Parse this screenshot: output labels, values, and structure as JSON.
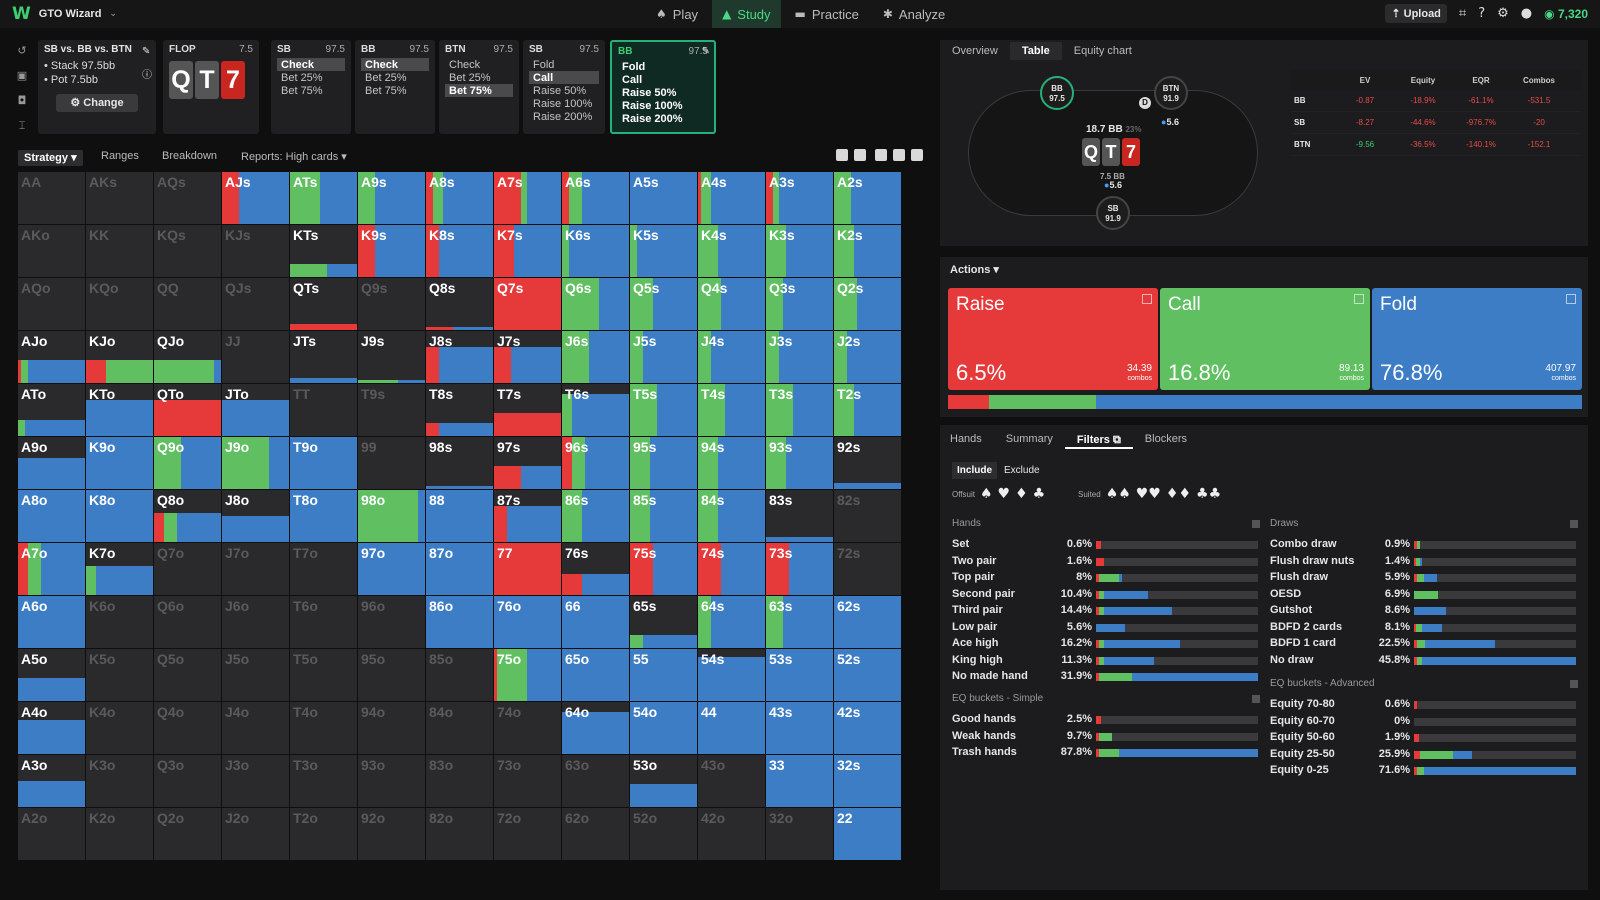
{
  "app": {
    "title": "GTO Wizard",
    "coins": "7,320",
    "upload": "Upload"
  },
  "nav": [
    {
      "label": "Play",
      "icon": "🃏"
    },
    {
      "label": "Study",
      "icon": "🎓"
    },
    {
      "label": "Practice",
      "icon": "🎮"
    },
    {
      "label": "Analyze",
      "icon": "💡"
    }
  ],
  "scenario": {
    "title": "SB vs. BB vs. BTN",
    "stack": "Stack 97.5bb",
    "pot": "Pot 7.5bb",
    "change": "Change"
  },
  "flop": {
    "label": "FLOP",
    "stack": "7.5",
    "cards": [
      {
        "rank": "Q",
        "suit": "grey"
      },
      {
        "rank": "T",
        "suit": "grey"
      },
      {
        "rank": "7",
        "suit": "red"
      }
    ]
  },
  "spots": [
    {
      "pos": "SB",
      "stack": "97.5",
      "options": [
        "Check",
        "Bet 25%",
        "Bet 75%"
      ],
      "selected": 0
    },
    {
      "pos": "BB",
      "stack": "97.5",
      "options": [
        "Check",
        "Bet 25%",
        "Bet 75%"
      ],
      "selected": 0
    },
    {
      "pos": "BTN",
      "stack": "97.5",
      "options": [
        "Check",
        "Bet 25%",
        "Bet 75%"
      ],
      "selected": 2
    },
    {
      "pos": "SB",
      "stack": "97.5",
      "options": [
        "Fold",
        "Call",
        "Raise 50%",
        "Raise 100%",
        "Raise 200%"
      ],
      "selected": 1
    },
    {
      "pos": "BB",
      "stack": "97.5",
      "options": [
        "Fold",
        "Call",
        "Raise 50%",
        "Raise 100%",
        "Raise 200%"
      ],
      "selected": -1,
      "active": true
    }
  ],
  "subtabs": {
    "strategy": "Strategy",
    "ranges": "Ranges",
    "breakdown": "Breakdown",
    "reports": "Reports: High cards"
  },
  "grid": [
    [
      [
        "AA",
        0,
        0,
        0
      ],
      [
        "AKs",
        0,
        0,
        0
      ],
      [
        "AQs",
        0,
        0,
        0
      ],
      [
        "AJs",
        25,
        0,
        75
      ],
      [
        "ATs",
        0,
        45,
        55
      ],
      [
        "A9s",
        0,
        25,
        75
      ],
      [
        "A8s",
        10,
        15,
        75
      ],
      [
        "A7s",
        40,
        10,
        50
      ],
      [
        "A6s",
        10,
        20,
        70
      ],
      [
        "A5s",
        0,
        0,
        100
      ],
      [
        "A4s",
        5,
        15,
        80
      ],
      [
        "A3s",
        10,
        10,
        80
      ],
      [
        "A2s",
        0,
        25,
        75
      ]
    ],
    [
      [
        "AKo",
        0,
        0,
        0
      ],
      [
        "KK",
        0,
        0,
        0
      ],
      [
        "KQs",
        0,
        0,
        0
      ],
      [
        "KJs",
        0,
        0,
        0
      ],
      [
        "KTs",
        0,
        55,
        45,
        0.25
      ],
      [
        "K9s",
        25,
        0,
        75
      ],
      [
        "K8s",
        20,
        0,
        80
      ],
      [
        "K7s",
        30,
        0,
        70
      ],
      [
        "K6s",
        0,
        10,
        90
      ],
      [
        "K5s",
        0,
        10,
        90
      ],
      [
        "K4s",
        0,
        30,
        70
      ],
      [
        "K3s",
        0,
        30,
        70
      ],
      [
        "K2s",
        0,
        30,
        70
      ]
    ],
    [
      [
        "AQo",
        0,
        0,
        0
      ],
      [
        "KQo",
        0,
        0,
        0
      ],
      [
        "QQ",
        0,
        0,
        0
      ],
      [
        "QJs",
        0,
        0,
        0
      ],
      [
        "QTs",
        100,
        0,
        0,
        0.12
      ],
      [
        "Q9s",
        0,
        0,
        0
      ],
      [
        "Q8s",
        40,
        0,
        60,
        0.06
      ],
      [
        "Q7s",
        100,
        0,
        0
      ],
      [
        "Q6s",
        0,
        55,
        45
      ],
      [
        "Q5s",
        0,
        35,
        65
      ],
      [
        "Q4s",
        0,
        35,
        65
      ],
      [
        "Q3s",
        0,
        25,
        75
      ],
      [
        "Q2s",
        0,
        35,
        65
      ]
    ],
    [
      [
        "AJo",
        5,
        10,
        85,
        0.45
      ],
      [
        "KJo",
        30,
        70,
        0,
        0.45
      ],
      [
        "QJo",
        0,
        90,
        10,
        0.45
      ],
      [
        "JJ",
        0,
        0,
        0
      ],
      [
        "JTs",
        0,
        0,
        100,
        0.1
      ],
      [
        "J9s",
        0,
        60,
        40,
        0.06
      ],
      [
        "J8s",
        20,
        0,
        80,
        0.7
      ],
      [
        "J7s",
        25,
        0,
        75,
        0.7
      ],
      [
        "J6s",
        0,
        40,
        60
      ],
      [
        "J5s",
        0,
        20,
        80
      ],
      [
        "J4s",
        0,
        20,
        80
      ],
      [
        "J3s",
        0,
        20,
        80
      ],
      [
        "J2s",
        0,
        20,
        80
      ]
    ],
    [
      [
        "ATo",
        0,
        10,
        90,
        0.3
      ],
      [
        "KTo",
        0,
        0,
        100,
        0.7
      ],
      [
        "QTo",
        100,
        0,
        0,
        0.7
      ],
      [
        "JTo",
        0,
        0,
        100,
        0.7
      ],
      [
        "TT",
        0,
        0,
        0
      ],
      [
        "T9s",
        0,
        0,
        0
      ],
      [
        "T8s",
        20,
        0,
        80,
        0.25
      ],
      [
        "T7s",
        100,
        0,
        0,
        0.45
      ],
      [
        "T6s",
        0,
        15,
        85,
        0.8
      ],
      [
        "T5s",
        0,
        40,
        60
      ],
      [
        "T4s",
        0,
        40,
        60
      ],
      [
        "T3s",
        0,
        40,
        60
      ],
      [
        "T2s",
        0,
        30,
        70
      ]
    ],
    [
      [
        "A9o",
        0,
        0,
        100,
        0.6
      ],
      [
        "K9o",
        0,
        0,
        100
      ],
      [
        "Q9o",
        0,
        40,
        60
      ],
      [
        "J9o",
        0,
        70,
        30
      ],
      [
        "T9o",
        0,
        0,
        100
      ],
      [
        "99",
        0,
        0,
        0
      ],
      [
        "98s",
        0,
        0,
        100,
        0.06
      ],
      [
        "97s",
        40,
        0,
        60,
        0.45
      ],
      [
        "96s",
        15,
        20,
        65
      ],
      [
        "95s",
        0,
        30,
        70
      ],
      [
        "94s",
        0,
        30,
        70
      ],
      [
        "93s",
        0,
        30,
        70
      ],
      [
        "92s",
        0,
        0,
        100,
        0.12
      ]
    ],
    [
      [
        "A8o",
        0,
        0,
        100
      ],
      [
        "K8o",
        0,
        0,
        100
      ],
      [
        "Q8o",
        15,
        20,
        65,
        0.55
      ],
      [
        "J8o",
        0,
        0,
        100,
        0.5
      ],
      [
        "T8o",
        0,
        0,
        100
      ],
      [
        "98o",
        0,
        90,
        10
      ],
      [
        "88",
        0,
        0,
        100
      ],
      [
        "87s",
        20,
        0,
        80,
        0.7
      ],
      [
        "86s",
        0,
        30,
        70
      ],
      [
        "85s",
        0,
        30,
        70
      ],
      [
        "84s",
        0,
        30,
        70
      ],
      [
        "83s",
        0,
        0,
        100,
        0.1
      ],
      [
        "82s",
        0,
        0,
        0
      ]
    ],
    [
      [
        "A7o",
        15,
        20,
        65
      ],
      [
        "K7o",
        0,
        15,
        85,
        0.55
      ],
      [
        "Q7o",
        0,
        0,
        0
      ],
      [
        "J7o",
        0,
        0,
        0
      ],
      [
        "T7o",
        0,
        0,
        0
      ],
      [
        "97o",
        0,
        0,
        100
      ],
      [
        "87o",
        0,
        0,
        100
      ],
      [
        "77",
        100,
        0,
        0
      ],
      [
        "76s",
        30,
        0,
        70,
        0.4
      ],
      [
        "75s",
        35,
        0,
        65
      ],
      [
        "74s",
        35,
        0,
        65
      ],
      [
        "73s",
        35,
        0,
        65
      ],
      [
        "72s",
        0,
        0,
        0
      ]
    ],
    [
      [
        "A6o",
        0,
        0,
        100
      ],
      [
        "K6o",
        0,
        0,
        0
      ],
      [
        "Q6o",
        0,
        0,
        0
      ],
      [
        "J6o",
        0,
        0,
        0
      ],
      [
        "T6o",
        0,
        0,
        0
      ],
      [
        "96o",
        0,
        0,
        0
      ],
      [
        "86o",
        0,
        0,
        100
      ],
      [
        "76o",
        0,
        0,
        100
      ],
      [
        "66",
        0,
        0,
        100
      ],
      [
        "65s",
        0,
        20,
        80,
        0.25
      ],
      [
        "64s",
        0,
        20,
        80
      ],
      [
        "63s",
        0,
        25,
        75
      ],
      [
        "62s",
        0,
        0,
        100
      ]
    ],
    [
      [
        "A5o",
        0,
        0,
        100,
        0.45
      ],
      [
        "K5o",
        0,
        0,
        0
      ],
      [
        "Q5o",
        0,
        0,
        0
      ],
      [
        "J5o",
        0,
        0,
        0
      ],
      [
        "T5o",
        0,
        0,
        0
      ],
      [
        "95o",
        0,
        0,
        0
      ],
      [
        "85o",
        0,
        0,
        0
      ],
      [
        "75o",
        5,
        45,
        50
      ],
      [
        "65o",
        0,
        0,
        100
      ],
      [
        "55",
        0,
        0,
        100
      ],
      [
        "54s",
        0,
        0,
        100,
        0.85
      ],
      [
        "53s",
        0,
        0,
        100
      ],
      [
        "52s",
        0,
        0,
        100
      ]
    ],
    [
      [
        "A4o",
        0,
        0,
        100,
        0.65
      ],
      [
        "K4o",
        0,
        0,
        0
      ],
      [
        "Q4o",
        0,
        0,
        0
      ],
      [
        "J4o",
        0,
        0,
        0
      ],
      [
        "T4o",
        0,
        0,
        0
      ],
      [
        "94o",
        0,
        0,
        0
      ],
      [
        "84o",
        0,
        0,
        0
      ],
      [
        "74o",
        0,
        0,
        0
      ],
      [
        "64o",
        0,
        0,
        100,
        0.8
      ],
      [
        "54o",
        0,
        0,
        100
      ],
      [
        "44",
        0,
        0,
        100
      ],
      [
        "43s",
        0,
        0,
        100
      ],
      [
        "42s",
        0,
        0,
        100
      ]
    ],
    [
      [
        "A3o",
        0,
        0,
        100,
        0.5
      ],
      [
        "K3o",
        0,
        0,
        0
      ],
      [
        "Q3o",
        0,
        0,
        0
      ],
      [
        "J3o",
        0,
        0,
        0
      ],
      [
        "T3o",
        0,
        0,
        0
      ],
      [
        "93o",
        0,
        0,
        0
      ],
      [
        "83o",
        0,
        0,
        0
      ],
      [
        "73o",
        0,
        0,
        0
      ],
      [
        "63o",
        0,
        0,
        0
      ],
      [
        "53o",
        0,
        0,
        100,
        0.45
      ],
      [
        "43o",
        0,
        0,
        0
      ],
      [
        "33",
        0,
        0,
        100
      ],
      [
        "32s",
        0,
        0,
        100
      ]
    ],
    [
      [
        "A2o",
        0,
        0,
        0
      ],
      [
        "K2o",
        0,
        0,
        0
      ],
      [
        "Q2o",
        0,
        0,
        0
      ],
      [
        "J2o",
        0,
        0,
        0
      ],
      [
        "T2o",
        0,
        0,
        0
      ],
      [
        "92o",
        0,
        0,
        0
      ],
      [
        "82o",
        0,
        0,
        0
      ],
      [
        "72o",
        0,
        0,
        0
      ],
      [
        "62o",
        0,
        0,
        0
      ],
      [
        "52o",
        0,
        0,
        0
      ],
      [
        "42o",
        0,
        0,
        0
      ],
      [
        "32o",
        0,
        0,
        0
      ],
      [
        "22",
        0,
        0,
        100
      ]
    ]
  ],
  "righttabs": [
    "Overview",
    "Table",
    "Equity chart"
  ],
  "table": {
    "seats": [
      {
        "pos": "BB",
        "stack": "97.5"
      },
      {
        "pos": "BTN",
        "stack": "91.9"
      },
      {
        "pos": "SB",
        "stack": "91.9"
      }
    ],
    "pot": "18.7 BB",
    "potpct": "23%",
    "btnbet": "5.6",
    "sbbet": "5.6",
    "bbbet": "7.5 BB",
    "cards": [
      "Q",
      "T",
      "7"
    ],
    "stats_headers": [
      "",
      "EV",
      "Equity",
      "EQR",
      "Combos"
    ],
    "stats": [
      {
        "pos": "BB",
        "ev": "-0.87",
        "eq": "-18.9%",
        "eqr": "-61.1%",
        "combos": "-531.5"
      },
      {
        "pos": "SB",
        "ev": "-8.27",
        "eq": "-44.6%",
        "eqr": "-976.7%",
        "combos": "-20"
      },
      {
        "pos": "BTN",
        "ev": "-9.56",
        "eq": "-36.5%",
        "eqr": "-140.1%",
        "combos": "-152.1"
      }
    ]
  },
  "actions": {
    "title": "Actions",
    "items": [
      {
        "name": "Raise",
        "pct": "6.5%",
        "combos": "34.39",
        "color": "#e63a3a"
      },
      {
        "name": "Call",
        "pct": "16.8%",
        "combos": "89.13",
        "color": "#5fbf61"
      },
      {
        "name": "Fold",
        "pct": "76.8%",
        "combos": "407.97",
        "color": "#3d7dc6"
      }
    ],
    "combos_label": "combos",
    "freq": [
      6.5,
      16.8,
      76.8
    ]
  },
  "filtertabs": [
    "Hands",
    "Summary",
    "Filters",
    "Blockers"
  ],
  "filters": {
    "include": "Include",
    "exclude": "Exclude",
    "offsuit": "Offsuit",
    "suited": "Suited"
  },
  "hands": {
    "title": "Hands",
    "rows": [
      {
        "n": "Set",
        "v": "0.6%",
        "r": 3,
        "g": 0,
        "b": 0
      },
      {
        "n": "Two pair",
        "v": "1.6%",
        "r": 5,
        "g": 0,
        "b": 0
      },
      {
        "n": "Top pair",
        "v": "8%",
        "r": 2,
        "g": 12,
        "b": 2
      },
      {
        "n": "Second pair",
        "v": "10.4%",
        "r": 2,
        "g": 3,
        "b": 27
      },
      {
        "n": "Third pair",
        "v": "14.4%",
        "r": 2,
        "g": 3,
        "b": 42
      },
      {
        "n": "Low pair",
        "v": "5.6%",
        "r": 0,
        "g": 0,
        "b": 18
      },
      {
        "n": "Ace high",
        "v": "16.2%",
        "r": 2,
        "g": 3,
        "b": 47
      },
      {
        "n": "King high",
        "v": "11.3%",
        "r": 2,
        "g": 3,
        "b": 31
      },
      {
        "n": "No made hand",
        "v": "31.9%",
        "r": 2,
        "g": 20,
        "b": 78
      }
    ]
  },
  "eqsimple": {
    "title": "EQ buckets - Simple",
    "rows": [
      {
        "n": "Good hands",
        "v": "2.5%",
        "r": 3,
        "g": 0,
        "b": 0
      },
      {
        "n": "Weak hands",
        "v": "9.7%",
        "r": 2,
        "g": 8,
        "b": 0
      },
      {
        "n": "Trash hands",
        "v": "87.8%",
        "r": 2,
        "g": 12,
        "b": 86
      }
    ]
  },
  "draws": {
    "title": "Draws",
    "rows": [
      {
        "n": "Combo draw",
        "v": "0.9%",
        "r": 2,
        "g": 2,
        "b": 0
      },
      {
        "n": "Flush draw nuts",
        "v": "1.4%",
        "r": 1,
        "g": 3,
        "b": 1
      },
      {
        "n": "Flush draw",
        "v": "5.9%",
        "r": 2,
        "g": 4,
        "b": 8
      },
      {
        "n": "OESD",
        "v": "6.9%",
        "r": 0,
        "g": 15,
        "b": 0
      },
      {
        "n": "Gutshot",
        "v": "8.6%",
        "r": 0,
        "g": 0,
        "b": 20
      },
      {
        "n": "BDFD 2 cards",
        "v": "8.1%",
        "r": 1,
        "g": 4,
        "b": 12
      },
      {
        "n": "BDFD 1 card",
        "v": "22.5%",
        "r": 2,
        "g": 5,
        "b": 43
      },
      {
        "n": "No draw",
        "v": "45.8%",
        "r": 2,
        "g": 3,
        "b": 95
      }
    ]
  },
  "eqadv": {
    "title": "EQ buckets - Advanced",
    "rows": [
      {
        "n": "Equity 70-80",
        "v": "0.6%",
        "r": 2,
        "g": 0,
        "b": 0
      },
      {
        "n": "Equity 60-70",
        "v": "0%",
        "r": 0,
        "g": 0,
        "b": 0
      },
      {
        "n": "Equity 50-60",
        "v": "1.9%",
        "r": 3,
        "g": 0,
        "b": 0
      },
      {
        "n": "Equity 25-50",
        "v": "25.9%",
        "r": 4,
        "g": 20,
        "b": 12
      },
      {
        "n": "Equity 0-25",
        "v": "71.6%",
        "r": 2,
        "g": 4,
        "b": 94
      }
    ]
  },
  "colors": {
    "raise": "#e63a3a",
    "call": "#5fbf61",
    "fold": "#3d7dc6"
  }
}
